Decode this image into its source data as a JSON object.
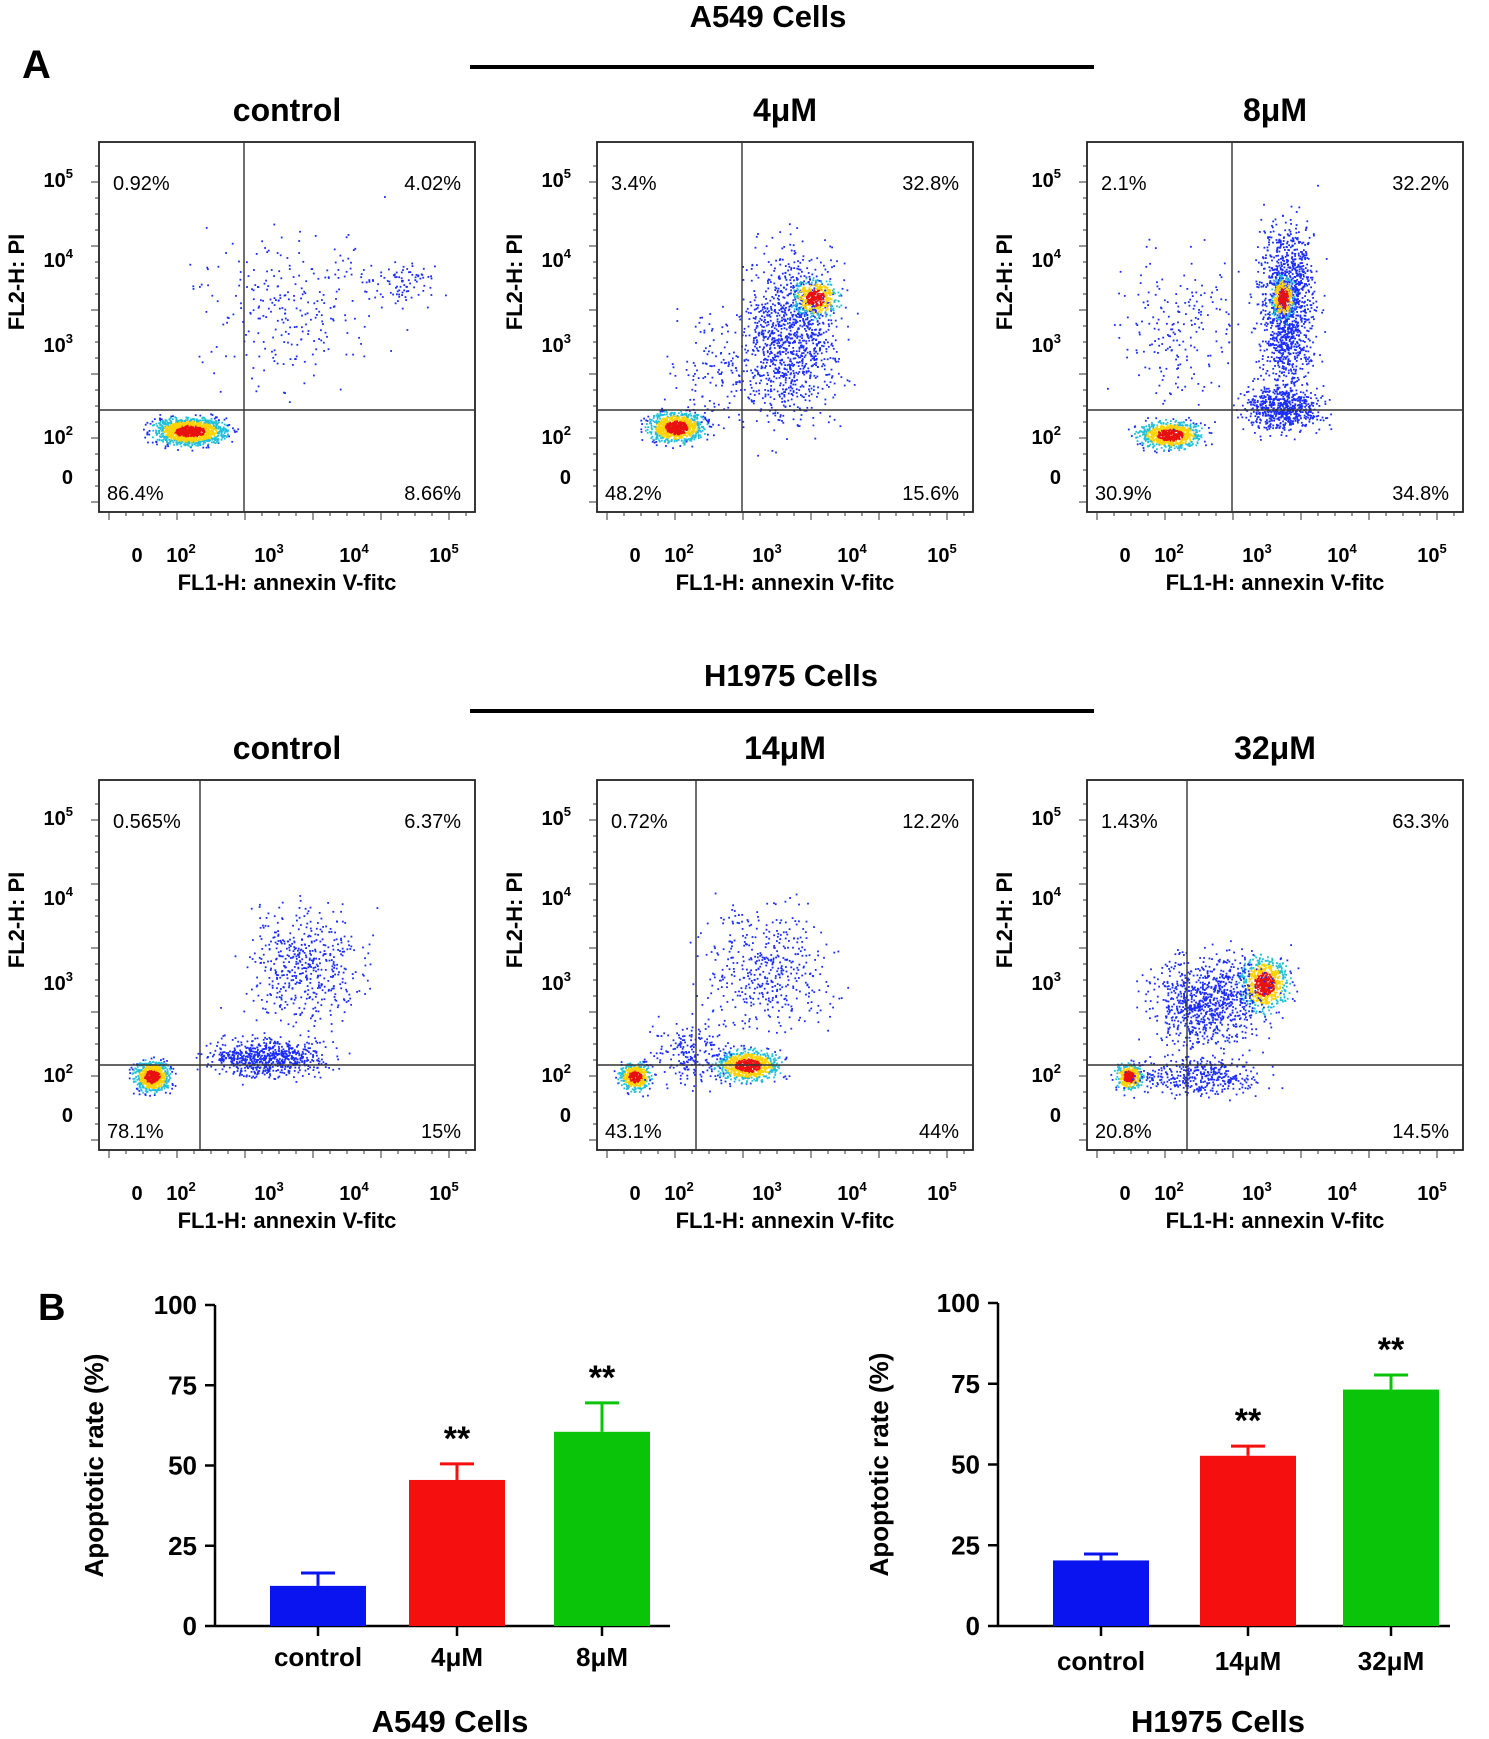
{
  "panel_labels": {
    "a": "A",
    "b": "B"
  },
  "groups": [
    {
      "title": "A549 Cells"
    },
    {
      "title": "H1975 Cells"
    }
  ],
  "flow_axes": {
    "xlabel": "FL1-H: annexin V-fitc",
    "ylabel": "FL2-H: PI",
    "ticks": [
      {
        "base": "0",
        "exp": "",
        "value": 0
      },
      {
        "base": "10",
        "exp": "2",
        "value": 100
      },
      {
        "base": "10",
        "exp": "3",
        "value": 1000
      },
      {
        "base": "10",
        "exp": "4",
        "value": 10000
      },
      {
        "base": "10",
        "exp": "5",
        "value": 100000
      }
    ]
  },
  "flow_plots": [
    {
      "title": "control",
      "quadrants": {
        "ul": "0.92%",
        "ur": "4.02%",
        "ll": "86.4%",
        "lr": "8.66%"
      }
    },
    {
      "title": "4μM",
      "quadrants": {
        "ul": "3.4%",
        "ur": "32.8%",
        "ll": "48.2%",
        "lr": "15.6%"
      }
    },
    {
      "title": "8μM",
      "quadrants": {
        "ul": "2.1%",
        "ur": "32.2%",
        "ll": "30.9%",
        "lr": "34.8%"
      }
    },
    {
      "title": "control",
      "quadrants": {
        "ul": "0.565%",
        "ur": "6.37%",
        "ll": "78.1%",
        "lr": "15%"
      }
    },
    {
      "title": "14μM",
      "quadrants": {
        "ul": "0.72%",
        "ur": "12.2%",
        "ll": "43.1%",
        "lr": "44%"
      }
    },
    {
      "title": "32μM",
      "quadrants": {
        "ul": "1.43%",
        "ur": "63.3%",
        "ll": "20.8%",
        "lr": "14.5%"
      }
    }
  ],
  "colors": {
    "control": "#0a14f0",
    "low": "#f50f0f",
    "high": "#0ac40a",
    "dots": "#1a2cff",
    "core_mid": "#22c0d8",
    "core_hot": "#ffd200",
    "core_max": "#e81010"
  },
  "chart_data": [
    {
      "type": "bar",
      "title": "A549 Cells",
      "ylabel": "Apoptotic rate (%)",
      "ylim": [
        0,
        100
      ],
      "yticks": [
        0,
        25,
        50,
        75,
        100
      ],
      "categories": [
        "control",
        "4μM",
        "8μM"
      ],
      "values": [
        12.5,
        45.5,
        60.5
      ],
      "errors": [
        4,
        5,
        9
      ],
      "annotations": [
        "",
        "**",
        "**"
      ]
    },
    {
      "type": "bar",
      "title": "H1975 Cells",
      "ylabel": "Apoptotic rate (%)",
      "ylim": [
        0,
        100
      ],
      "yticks": [
        0,
        25,
        50,
        75,
        100
      ],
      "categories": [
        "control",
        "14μM",
        "32μM"
      ],
      "values": [
        20.3,
        52.7,
        73.2
      ],
      "errors": [
        2,
        3,
        4.5
      ],
      "annotations": [
        "",
        "**",
        "**"
      ]
    }
  ]
}
